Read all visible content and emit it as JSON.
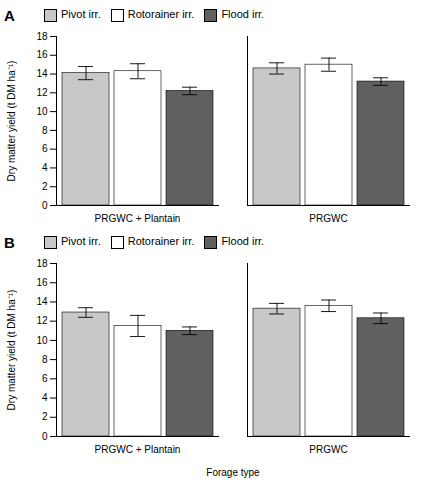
{
  "chart_data": [
    {
      "type": "bar",
      "title": "A",
      "categories": [
        "PRGWC + Plantain",
        "PRGWC"
      ],
      "series": [
        {
          "name": "Pivot irr.",
          "color": "#c8c8c8",
          "values": [
            14.1,
            14.6
          ],
          "sem": [
            0.7,
            0.6
          ]
        },
        {
          "name": "Rotorainer irr.",
          "color": "#ffffff",
          "values": [
            14.3,
            15.0
          ],
          "sem": [
            0.8,
            0.7
          ]
        },
        {
          "name": "Flood irr.",
          "color": "#606060",
          "values": [
            12.2,
            13.2
          ],
          "sem": [
            0.4,
            0.4
          ]
        }
      ],
      "ylabel": "Dry matter yield (t DM ha⁻¹)",
      "ylim": [
        0,
        18
      ],
      "yticks": [
        0,
        2,
        4,
        6,
        8,
        10,
        12,
        14,
        16,
        18
      ],
      "legend": "upper left"
    },
    {
      "type": "bar",
      "title": "B",
      "categories": [
        "PRGWC + Plantain",
        "PRGWC"
      ],
      "series": [
        {
          "name": "Pivot irr.",
          "color": "#c8c8c8",
          "values": [
            12.9,
            13.3
          ],
          "sem": [
            0.5,
            0.55
          ]
        },
        {
          "name": "Rotorainer irr.",
          "color": "#ffffff",
          "values": [
            11.5,
            13.6
          ],
          "sem": [
            1.1,
            0.6
          ]
        },
        {
          "name": "Flood irr.",
          "color": "#606060",
          "values": [
            11.0,
            12.3
          ],
          "sem": [
            0.4,
            0.55
          ]
        }
      ],
      "xlabel": "Forage type",
      "ylabel": "Dry matter yield (t DM ha⁻¹)",
      "ylim": [
        0,
        18
      ],
      "yticks": [
        0,
        2,
        4,
        6,
        8,
        10,
        12,
        14,
        16,
        18
      ],
      "legend": "upper left"
    }
  ]
}
